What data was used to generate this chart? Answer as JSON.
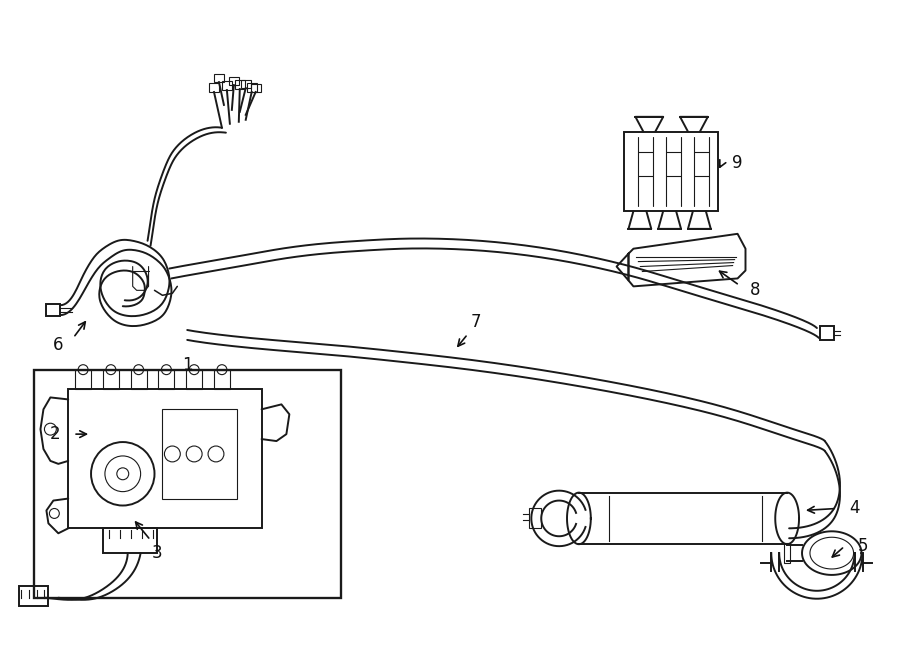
{
  "bg_color": "#ffffff",
  "line_color": "#1a1a1a",
  "lw": 1.4,
  "tlw": 0.8,
  "label_fontsize": 12,
  "figsize": [
    9.0,
    6.61
  ],
  "dpi": 100
}
